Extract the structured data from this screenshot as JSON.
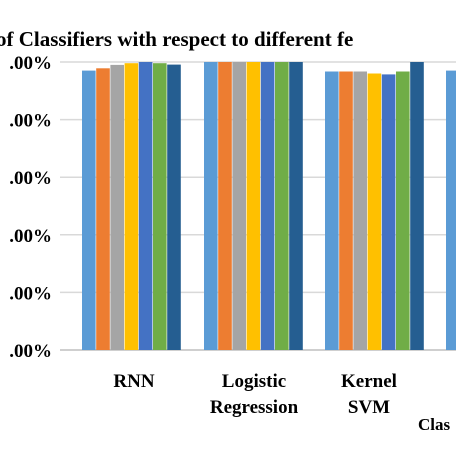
{
  "chart_data": {
    "type": "bar",
    "title": "of Classifiers with respect to different fe",
    "xlabel": "Clas",
    "ylabel": "",
    "categories": [
      "RNN",
      "Logistic Regression",
      "Kernel SVM",
      ""
    ],
    "category_lines": [
      [
        "RNN"
      ],
      [
        "Logistic",
        "Regression"
      ],
      [
        "Kernel",
        "SVM"
      ],
      [
        ""
      ]
    ],
    "ytick_labels": [
      ".00%",
      ".00%",
      ".00%",
      ".00%",
      ".00%",
      ".00%"
    ],
    "ylim": [
      0,
      100
    ],
    "yticks": [
      0,
      20,
      40,
      60,
      80,
      100
    ],
    "grid": true,
    "series": [
      {
        "color": "#5b9bd5",
        "values": [
          97.0,
          100.0,
          96.7,
          97.0
        ]
      },
      {
        "color": "#ed7d31",
        "values": [
          97.8,
          100.0,
          96.7,
          null
        ]
      },
      {
        "color": "#a5a5a5",
        "values": [
          99.0,
          100.0,
          96.7,
          null
        ]
      },
      {
        "color": "#ffc000",
        "values": [
          99.6,
          100.0,
          96.0,
          null
        ]
      },
      {
        "color": "#4472c4",
        "values": [
          100.0,
          100.0,
          95.7,
          null
        ]
      },
      {
        "color": "#70ad47",
        "values": [
          99.6,
          100.0,
          96.7,
          null
        ]
      },
      {
        "color": "#255e91",
        "values": [
          99.1,
          100.0,
          100.0,
          null
        ]
      }
    ]
  }
}
